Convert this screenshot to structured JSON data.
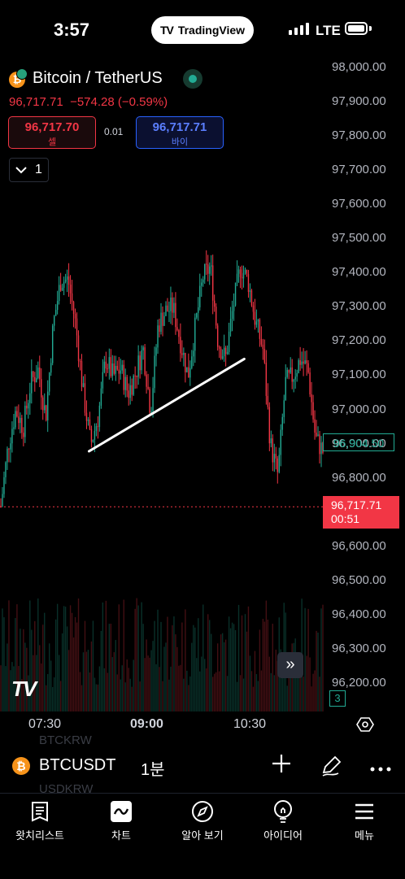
{
  "status_bar": {
    "time": "3:57",
    "app_pill": "TradingView",
    "network": "LTE"
  },
  "header": {
    "symbol_title": "Bitcoin / TetherUS",
    "last_price": "96,717.71",
    "change": "−574.28",
    "change_pct": "(−0.59%)",
    "sell": {
      "price": "96,717.70",
      "label": "셀"
    },
    "buy": {
      "price": "96,717.71",
      "label": "바이"
    },
    "spread": "0.01",
    "collapse_count": "1"
  },
  "price_axis": {
    "ticks": [
      "98,000.00",
      "97,900.00",
      "97,800.00",
      "97,700.00",
      "97,600.00",
      "97,500.00",
      "97,400.00",
      "97,300.00",
      "97,200.00",
      "97,100.00",
      "97,000.00",
      "96,900.00",
      "96,800.00",
      "96,700.00",
      "96,600.00",
      "96,500.00",
      "96,400.00",
      "96,300.00",
      "96,200.00"
    ],
    "ma_label": "96,904.50",
    "current_price": "96,717.71",
    "countdown": "00:51",
    "volume_badge": "3"
  },
  "time_axis": {
    "ticks": [
      "07:30",
      "09:00",
      "10:30"
    ]
  },
  "symbol_bar": {
    "ghost_above": "BTCKRW",
    "ghost_below": "USDKRW",
    "symbol": "BTCUSDT",
    "interval": "1분"
  },
  "nav": {
    "items": [
      {
        "label": "왓치리스트",
        "icon": "watchlist-icon"
      },
      {
        "label": "차트",
        "icon": "chart-icon"
      },
      {
        "label": "알아 보기",
        "icon": "compass-icon"
      },
      {
        "label": "아이디어",
        "icon": "lightbulb-icon"
      },
      {
        "label": "메뉴",
        "icon": "menu-icon"
      }
    ]
  },
  "colors": {
    "up": "#22ab94",
    "down": "#f23645",
    "accent_blue": "#2962ff",
    "background": "#000000"
  },
  "chart_data": {
    "type": "candlestick",
    "symbol": "BTCUSDT",
    "interval": "1분",
    "ylim": [
      96100,
      98050
    ],
    "y_ticks": [
      98000,
      97900,
      97800,
      97700,
      97600,
      97500,
      97400,
      97300,
      97200,
      97100,
      97000,
      96900,
      96800,
      96700,
      96600,
      96500,
      96400,
      96300,
      96200
    ],
    "x_ticks": [
      "07:30",
      "09:00",
      "10:30"
    ],
    "current_price": 96717.71,
    "ma_value": 96904.5,
    "trendline": [
      [
        0.265,
        96880
      ],
      [
        0.722,
        97150
      ]
    ],
    "close_series": [
      96720,
      96900,
      97000,
      96950,
      97080,
      97120,
      96980,
      97250,
      97380,
      97380,
      97250,
      97050,
      96900,
      96980,
      97150,
      97100,
      97120,
      97050,
      97110,
      97180,
      97000,
      97250,
      97290,
      97300,
      97200,
      97100,
      97250,
      97390,
      97420,
      97200,
      97150,
      97300,
      97420,
      97380,
      97260,
      97180,
      96900,
      96810,
      97080,
      97100,
      97150,
      97120,
      96920,
      96880
    ],
    "grid": false
  }
}
